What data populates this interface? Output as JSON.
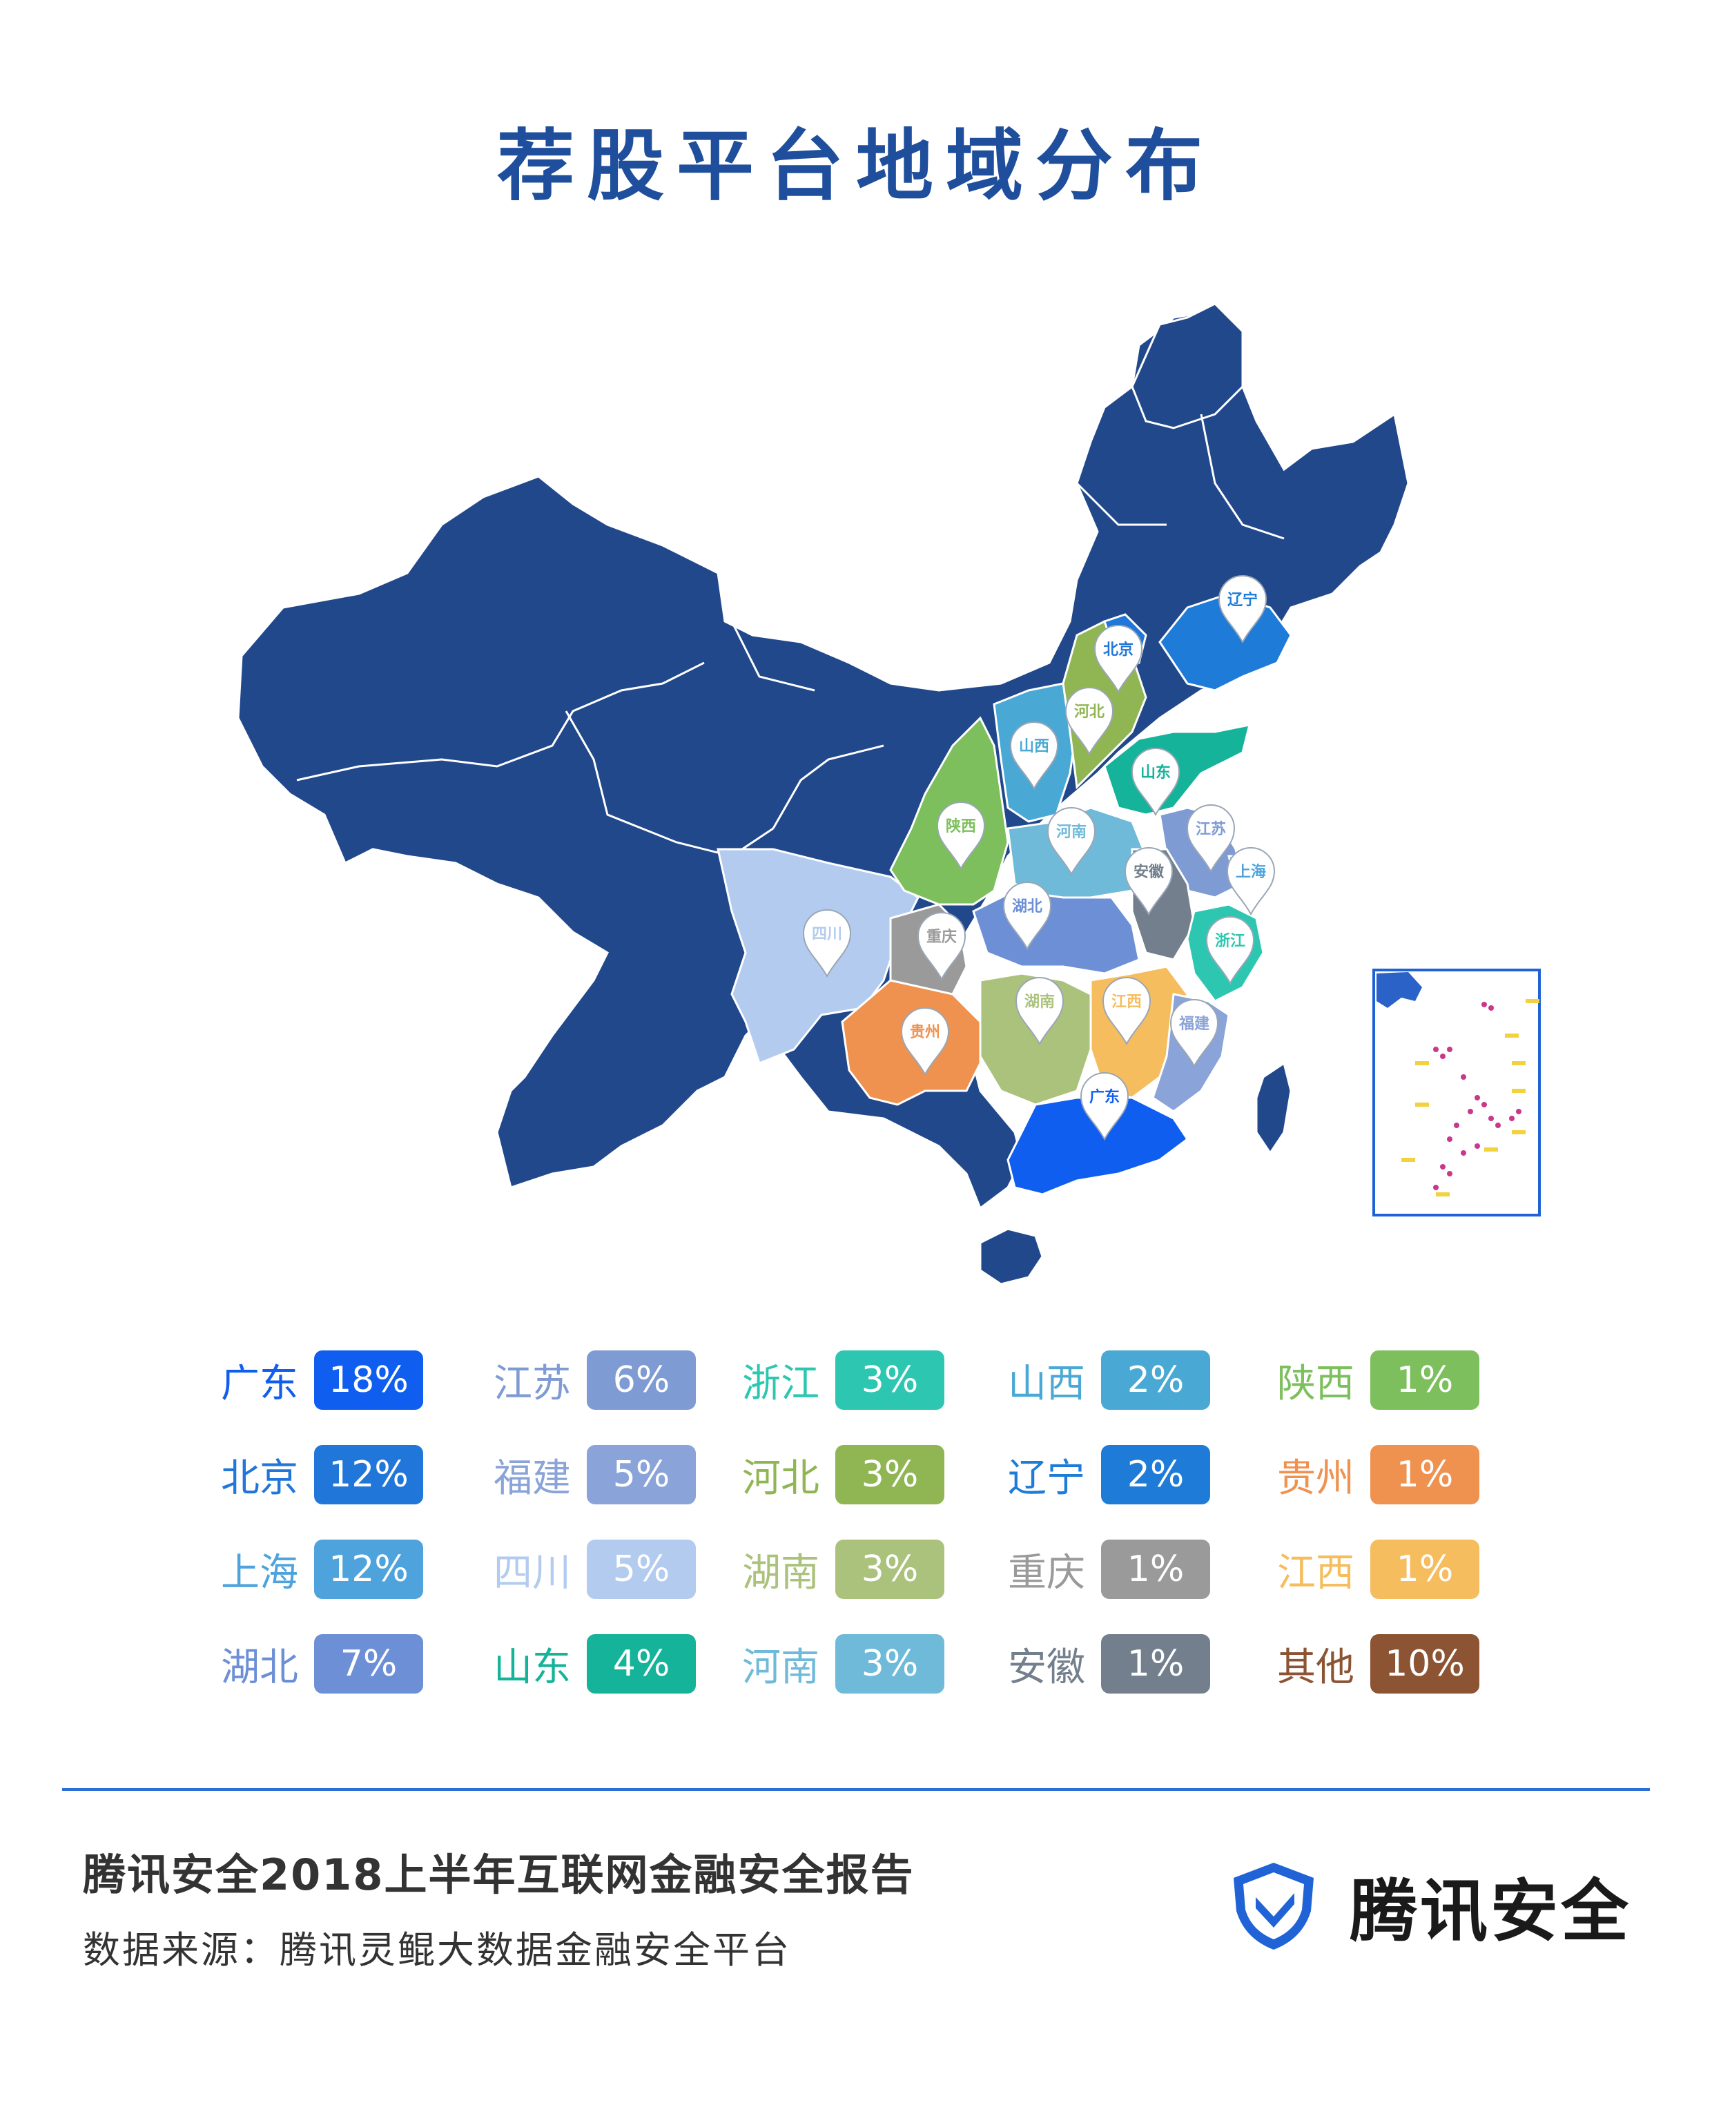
{
  "title": "荐股平台地域分布",
  "colors": {
    "base": "#22488c",
    "border": "#ffffff",
    "pin_fill": "#ffffff",
    "pin_stroke": "#9aa6b5",
    "inset_border": "#1e63d6",
    "inset_island": "#c9388a",
    "inset_marker": "#f2d23e",
    "divider": "#2d6fd6",
    "brand_blue": "#1f63d6"
  },
  "map": {
    "provinces": [
      {
        "name": "广东",
        "color": "#0f5ef0"
      },
      {
        "name": "北京",
        "color": "#2176da"
      },
      {
        "name": "上海",
        "color": "#4ea3dc"
      },
      {
        "name": "湖北",
        "color": "#6d8fd6"
      },
      {
        "name": "江苏",
        "color": "#7f9bd4"
      },
      {
        "name": "福建",
        "color": "#8aa3d8"
      },
      {
        "name": "四川",
        "color": "#b3cbee"
      },
      {
        "name": "山东",
        "color": "#15b39a"
      },
      {
        "name": "浙江",
        "color": "#2dc7b1"
      },
      {
        "name": "河北",
        "color": "#90b653"
      },
      {
        "name": "湖南",
        "color": "#abc27c"
      },
      {
        "name": "河南",
        "color": "#6fbad9"
      },
      {
        "name": "山西",
        "color": "#4aa9d4"
      },
      {
        "name": "辽宁",
        "color": "#1e7bd8"
      },
      {
        "name": "重庆",
        "color": "#9a9a9a"
      },
      {
        "name": "安徽",
        "color": "#737f8d"
      },
      {
        "name": "陕西",
        "color": "#7cbf5c"
      },
      {
        "name": "贵州",
        "color": "#ef9250"
      },
      {
        "name": "江西",
        "color": "#f5bd5e"
      }
    ]
  },
  "legend": {
    "rows": [
      [
        {
          "name": "广东",
          "pct": "18%",
          "color": "#0f5ef0"
        },
        {
          "name": "江苏",
          "pct": "6%",
          "color": "#7f9bd4"
        },
        {
          "name": "浙江",
          "pct": "3%",
          "color": "#2dc7b1"
        },
        {
          "name": "山西",
          "pct": "2%",
          "color": "#4aa9d4"
        },
        {
          "name": "陕西",
          "pct": "1%",
          "color": "#7cbf5c"
        }
      ],
      [
        {
          "name": "北京",
          "pct": "12%",
          "color": "#2176da"
        },
        {
          "name": "福建",
          "pct": "5%",
          "color": "#8aa3d8"
        },
        {
          "name": "河北",
          "pct": "3%",
          "color": "#90b653"
        },
        {
          "name": "辽宁",
          "pct": "2%",
          "color": "#1e7bd8"
        },
        {
          "name": "贵州",
          "pct": "1%",
          "color": "#ef9250"
        }
      ],
      [
        {
          "name": "上海",
          "pct": "12%",
          "color": "#4ea3dc"
        },
        {
          "name": "四川",
          "pct": "5%",
          "color": "#b3cbee"
        },
        {
          "name": "湖南",
          "pct": "3%",
          "color": "#abc27c"
        },
        {
          "name": "重庆",
          "pct": "1%",
          "color": "#9a9a9a"
        },
        {
          "name": "江西",
          "pct": "1%",
          "color": "#f5bd5e"
        }
      ],
      [
        {
          "name": "湖北",
          "pct": "7%",
          "color": "#6d8fd6"
        },
        {
          "name": "山东",
          "pct": "4%",
          "color": "#15b39a"
        },
        {
          "name": "河南",
          "pct": "3%",
          "color": "#6fbad9"
        },
        {
          "name": "安徽",
          "pct": "1%",
          "color": "#737f8d"
        },
        {
          "name": "其他",
          "pct": "10%",
          "color": "#8c5433"
        }
      ]
    ]
  },
  "footer": {
    "report_title": "腾讯安全2018上半年互联网金融安全报告",
    "source": "数据来源：腾讯灵鲲大数据金融安全平台"
  },
  "brand": {
    "name": "腾讯安全",
    "icon": "tencent-security-shield-icon"
  }
}
